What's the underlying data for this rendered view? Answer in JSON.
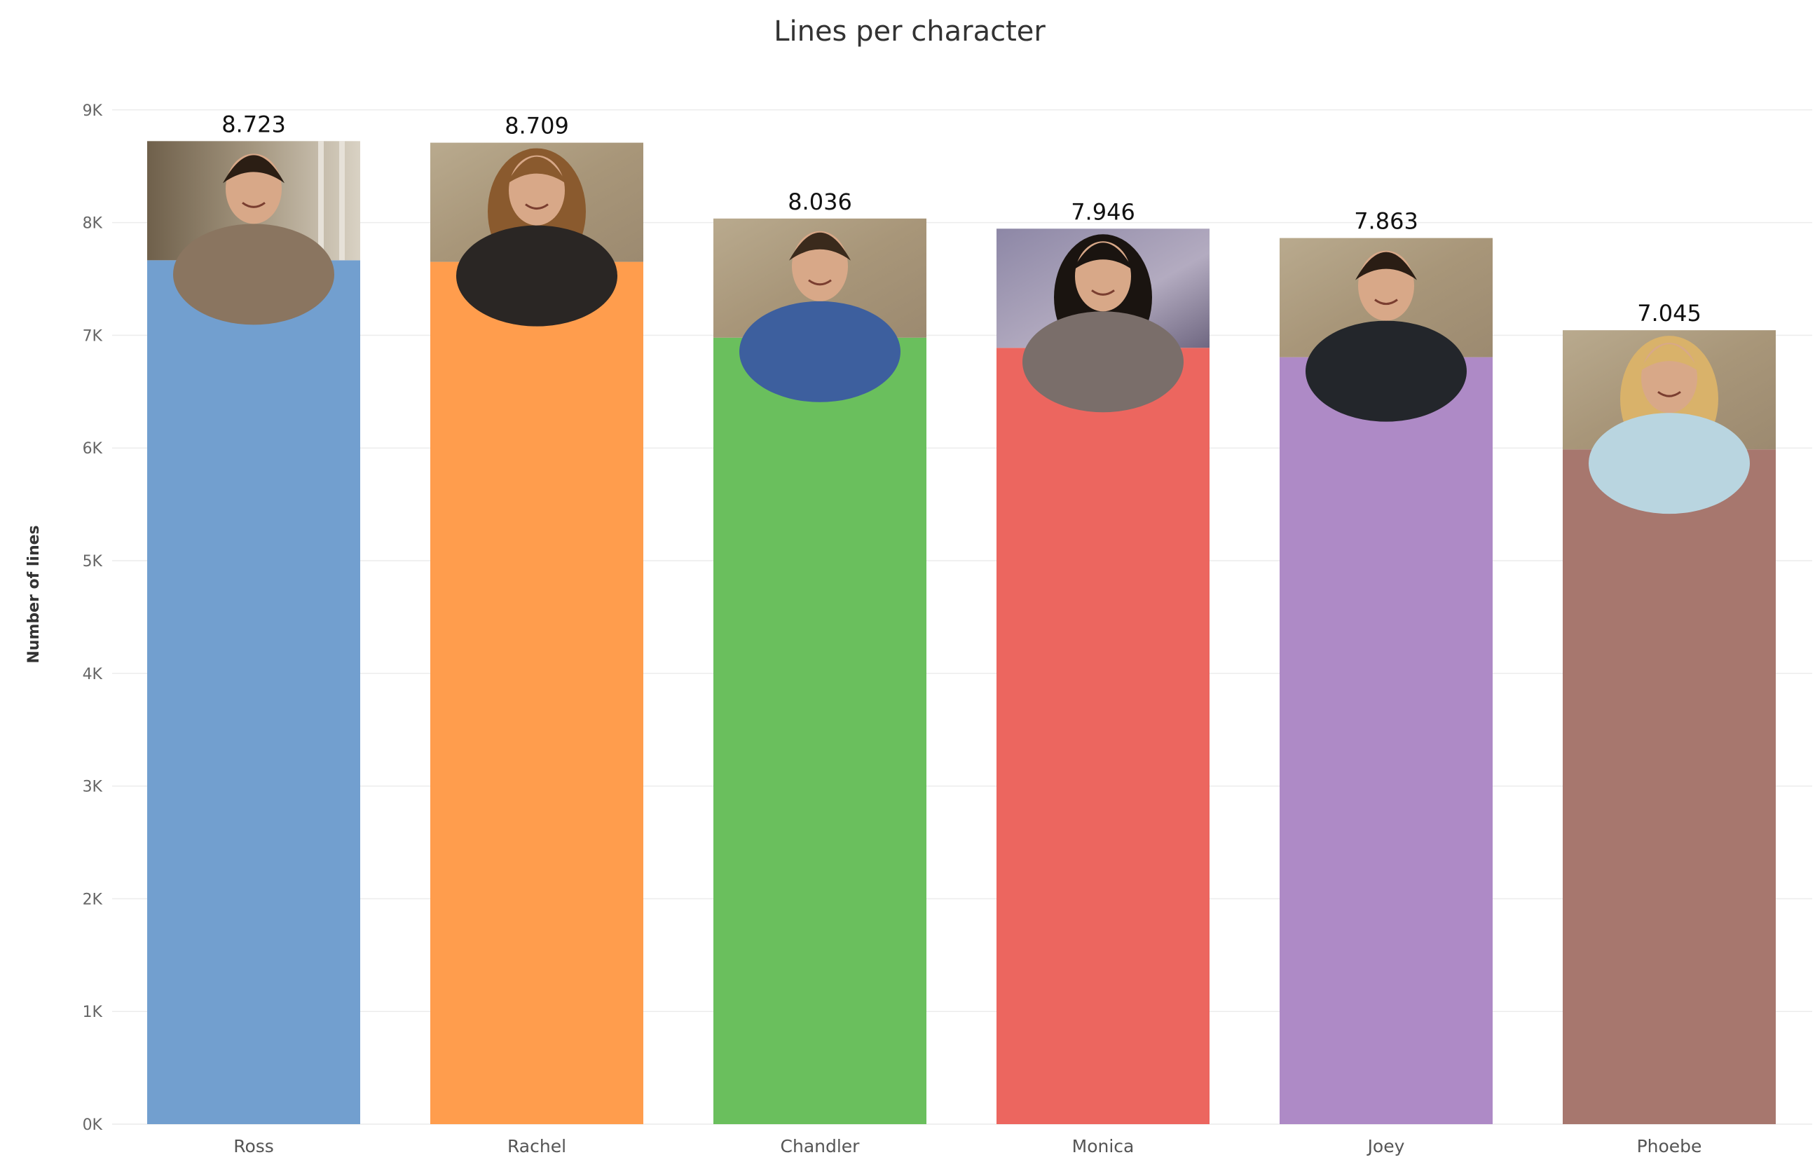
{
  "chart_data": {
    "type": "bar",
    "title": "Lines per character",
    "xlabel": "",
    "ylabel": "Number of lines",
    "categories": [
      "Ross",
      "Rachel",
      "Chandler",
      "Monica",
      "Joey",
      "Phoebe"
    ],
    "values": [
      8723,
      8709,
      8036,
      7946,
      7863,
      7045
    ],
    "data_labels": [
      "8.723",
      "8.709",
      "8.036",
      "7.946",
      "7.863",
      "7.045"
    ],
    "y_ticks": [
      "0K",
      "1K",
      "2K",
      "3K",
      "4K",
      "5K",
      "6K",
      "7K",
      "8K",
      "9K"
    ],
    "y_tick_values": [
      0,
      1000,
      2000,
      3000,
      4000,
      5000,
      6000,
      7000,
      8000,
      9000
    ],
    "ylim": [
      0,
      9500
    ],
    "grid": true,
    "legend": "none",
    "colors": [
      "#729fcf",
      "#ff9d4d",
      "#6abf5d",
      "#ec665f",
      "#ae8ac6",
      "#a7776e"
    ],
    "portrait_photos": [
      "photo-ross",
      "photo-rachel",
      "photo-chandler",
      "photo-monica",
      "photo-joey",
      "photo-phoebe"
    ]
  }
}
